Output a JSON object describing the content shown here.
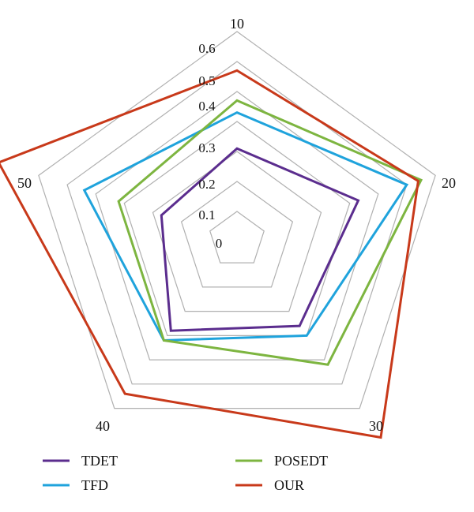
{
  "chart_data": {
    "type": "radar",
    "axes": [
      "10",
      "20",
      "30",
      "40",
      "50"
    ],
    "rlim": [
      0,
      0.6
    ],
    "ticks": [
      "0",
      "0.1",
      "0.2",
      "0.3",
      "0.4",
      "0.5",
      "0.6"
    ],
    "grid": true,
    "legend_position": "bottom",
    "series": [
      {
        "name": "TDET",
        "color": "#5b2d8e",
        "values": [
          0.21,
          0.33,
          0.26,
          0.28,
          0.17
        ]
      },
      {
        "name": "TFD",
        "color": "#1fa3dc",
        "values": [
          0.33,
          0.5,
          0.3,
          0.32,
          0.44
        ]
      },
      {
        "name": "POSEDT",
        "color": "#7db540",
        "values": [
          0.37,
          0.55,
          0.42,
          0.32,
          0.32
        ]
      },
      {
        "name": "OUR",
        "color": "#c8391a",
        "values": [
          0.47,
          0.54,
          0.72,
          0.54,
          0.74
        ]
      }
    ]
  }
}
